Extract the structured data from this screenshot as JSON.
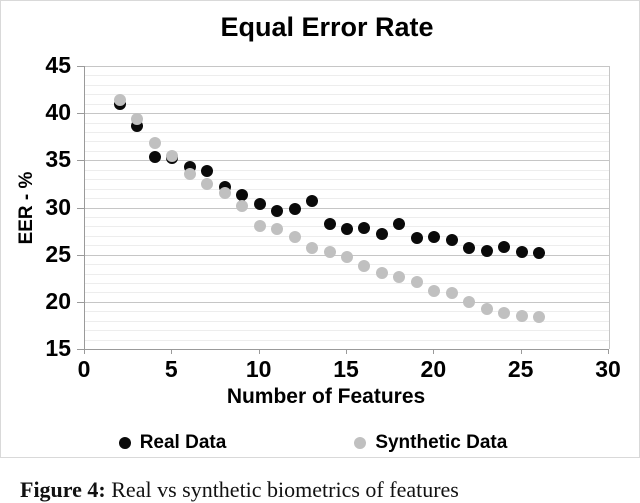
{
  "chart_data": {
    "type": "scatter",
    "title": "Equal Error Rate",
    "xlabel": "Number of Features",
    "ylabel": "EER - %",
    "xlim": [
      0,
      30
    ],
    "ylim": [
      15,
      45
    ],
    "x_ticks": [
      0,
      5,
      10,
      15,
      20,
      25,
      30
    ],
    "y_ticks": [
      15,
      20,
      25,
      30,
      35,
      40,
      45
    ],
    "grid": "horizontal, minor every 1 and major every 5, no vertical gridlines",
    "legend_position": "bottom",
    "x": [
      2,
      3,
      4,
      5,
      6,
      7,
      8,
      9,
      10,
      11,
      12,
      13,
      14,
      15,
      16,
      17,
      18,
      19,
      20,
      21,
      22,
      23,
      24,
      25,
      26
    ],
    "series": [
      {
        "name": "Real Data",
        "color": "#0a0a0a",
        "values": [
          41.0,
          38.6,
          35.4,
          35.2,
          34.3,
          33.9,
          32.2,
          31.3,
          30.4,
          29.6,
          29.8,
          30.7,
          28.2,
          27.7,
          27.8,
          27.2,
          28.3,
          26.8,
          26.9,
          26.6,
          25.7,
          25.4,
          25.8,
          25.3,
          25.2
        ]
      },
      {
        "name": "Synthetic Data",
        "color": "#c0c0c0",
        "values": [
          41.4,
          39.4,
          36.8,
          35.5,
          33.5,
          32.5,
          31.5,
          30.2,
          28.0,
          27.7,
          26.9,
          25.7,
          25.3,
          24.7,
          23.8,
          23.1,
          22.6,
          22.1,
          21.2,
          20.9,
          20.0,
          19.2,
          18.8,
          18.5,
          18.4
        ]
      }
    ]
  },
  "colors": {
    "real": "#0a0a0a",
    "synthetic": "#c0c0c0",
    "grid_major": "#c6c6c6",
    "grid_minor": "#ededed",
    "axis": "#9a9a9a",
    "chart_border": "#d9d9d9"
  },
  "caption": {
    "prefix": "Figure 4:",
    "text": " Real vs synthetic biometrics of features"
  }
}
